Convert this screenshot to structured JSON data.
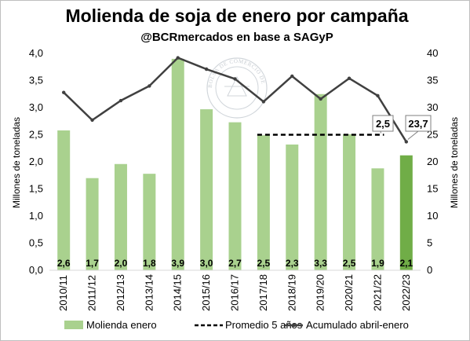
{
  "chart_data": {
    "type": "bar",
    "title": "Molienda de soja de enero por campaña",
    "subtitle": "@BCRmercados en base a SAGyP",
    "ylabel": "Millones de toneladas",
    "y2label": "Millones de toneladas",
    "ylim": [
      0,
      4.0
    ],
    "y2lim": [
      0,
      40
    ],
    "yticks": [
      "0,0",
      "0,5",
      "1,0",
      "1,5",
      "2,0",
      "2,5",
      "3,0",
      "3,5",
      "4,0"
    ],
    "y2ticks": [
      "0",
      "5",
      "10",
      "15",
      "20",
      "25",
      "30",
      "35",
      "40"
    ],
    "categories": [
      "2010/11",
      "2011/12",
      "2012/13",
      "2013/14",
      "2014/15",
      "2015/16",
      "2016/17",
      "2017/18",
      "2018/19",
      "2019/20",
      "2020/21",
      "2021/22",
      "2022/23"
    ],
    "series": [
      {
        "name": "Molienda enero",
        "type": "bar",
        "axis": "left",
        "color": "#a9d18e",
        "highlight_color": "#70ad47",
        "values": [
          2.58,
          1.7,
          1.96,
          1.78,
          3.9,
          2.97,
          2.73,
          2.49,
          2.32,
          3.25,
          2.51,
          1.88,
          2.12
        ],
        "labels": [
          "2,6",
          "1,7",
          "2,0",
          "1,8",
          "3,9",
          "3,0",
          "2,7",
          "2,5",
          "2,3",
          "3,3",
          "2,5",
          "1,9",
          "2,1"
        ]
      },
      {
        "name": "Promedio 5 años",
        "type": "line",
        "style": "dashed",
        "axis": "left",
        "color": "#000000",
        "x_range": [
          "2017/18",
          "2021/22"
        ],
        "value": 2.5
      },
      {
        "name": "Acumulado abril-enero",
        "type": "line",
        "axis": "right",
        "color": "#404040",
        "values": [
          32.8,
          27.7,
          31.3,
          34.0,
          39.2,
          37.1,
          35.3,
          31.1,
          35.8,
          31.6,
          35.4,
          32.2,
          23.7
        ]
      }
    ],
    "callouts": [
      "2,5",
      "23,7"
    ],
    "grid": false,
    "legend": "bottom"
  },
  "watermark": {
    "text": "BOLSA DE COMERCIO DE ROSARIO"
  }
}
